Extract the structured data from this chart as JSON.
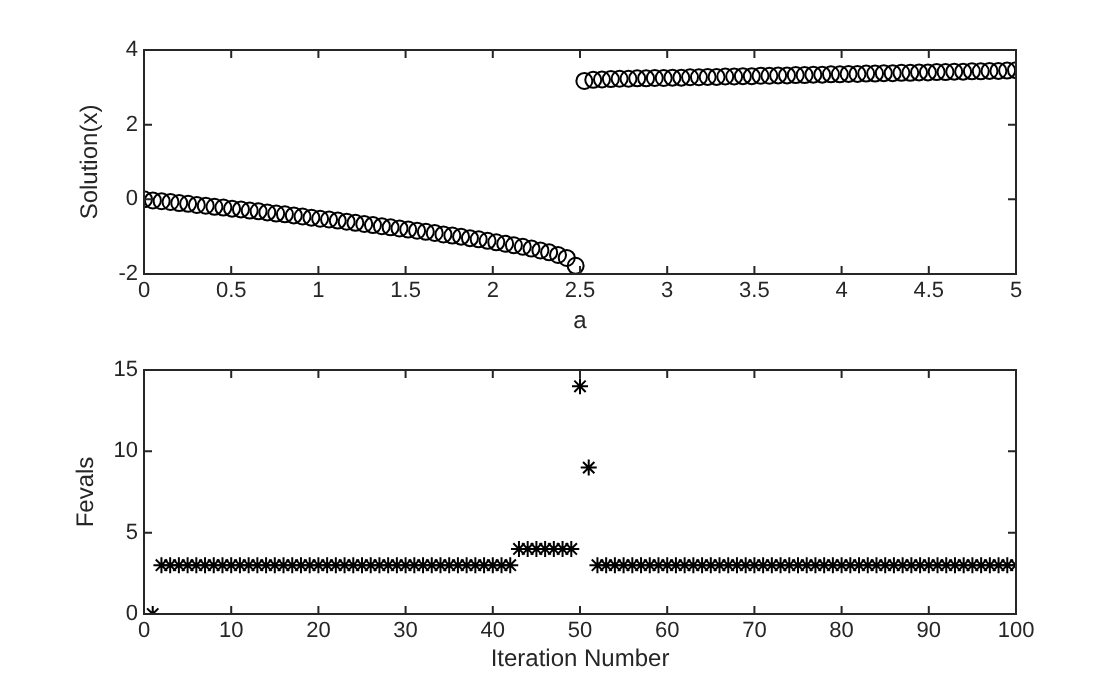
{
  "chart_data": [
    {
      "type": "scatter",
      "xlabel": "a",
      "ylabel": "Solution(x)",
      "color": "#000000",
      "marker": "circle",
      "grid": false,
      "legend": false,
      "xlim": [
        0,
        5
      ],
      "ylim": [
        -2,
        4
      ],
      "xticks": [
        0,
        0.5,
        1,
        1.5,
        2,
        2.5,
        3,
        3.5,
        4,
        4.5,
        5
      ],
      "yticks": [
        -2,
        0,
        2,
        4
      ],
      "x": [
        0,
        0.051,
        0.101,
        0.152,
        0.202,
        0.253,
        0.303,
        0.354,
        0.404,
        0.455,
        0.505,
        0.556,
        0.606,
        0.657,
        0.707,
        0.758,
        0.808,
        0.859,
        0.909,
        0.96,
        1.01,
        1.061,
        1.111,
        1.162,
        1.212,
        1.263,
        1.313,
        1.364,
        1.414,
        1.465,
        1.515,
        1.566,
        1.616,
        1.667,
        1.717,
        1.768,
        1.818,
        1.869,
        1.919,
        1.97,
        2.02,
        2.071,
        2.121,
        2.172,
        2.222,
        2.273,
        2.323,
        2.374,
        2.424,
        2.475,
        2.525,
        2.576,
        2.626,
        2.677,
        2.727,
        2.778,
        2.828,
        2.879,
        2.929,
        2.98,
        3.03,
        3.081,
        3.131,
        3.182,
        3.232,
        3.283,
        3.333,
        3.384,
        3.434,
        3.485,
        3.535,
        3.586,
        3.636,
        3.687,
        3.737,
        3.788,
        3.838,
        3.889,
        3.939,
        3.99,
        4.04,
        4.091,
        4.141,
        4.192,
        4.242,
        4.293,
        4.343,
        4.394,
        4.444,
        4.495,
        4.545,
        4.596,
        4.646,
        4.697,
        4.747,
        4.798,
        4.848,
        4.899,
        4.949,
        5
      ],
      "values": [
        0,
        -0.03,
        -0.05,
        -0.07,
        -0.1,
        -0.12,
        -0.15,
        -0.17,
        -0.2,
        -0.22,
        -0.25,
        -0.27,
        -0.3,
        -0.32,
        -0.35,
        -0.38,
        -0.4,
        -0.43,
        -0.46,
        -0.49,
        -0.52,
        -0.54,
        -0.57,
        -0.6,
        -0.63,
        -0.66,
        -0.69,
        -0.72,
        -0.75,
        -0.78,
        -0.81,
        -0.84,
        -0.87,
        -0.9,
        -0.94,
        -0.97,
        -1.0,
        -1.04,
        -1.07,
        -1.11,
        -1.15,
        -1.19,
        -1.23,
        -1.27,
        -1.32,
        -1.37,
        -1.42,
        -1.49,
        -1.57,
        -1.78,
        3.17,
        3.2,
        3.21,
        3.22,
        3.23,
        3.23,
        3.24,
        3.24,
        3.25,
        3.25,
        3.26,
        3.26,
        3.27,
        3.27,
        3.28,
        3.28,
        3.29,
        3.29,
        3.3,
        3.3,
        3.31,
        3.31,
        3.32,
        3.32,
        3.33,
        3.33,
        3.34,
        3.34,
        3.35,
        3.35,
        3.36,
        3.36,
        3.37,
        3.37,
        3.38,
        3.38,
        3.39,
        3.39,
        3.4,
        3.4,
        3.41,
        3.41,
        3.42,
        3.42,
        3.43,
        3.43,
        3.44,
        3.44,
        3.45,
        3.46
      ]
    },
    {
      "type": "scatter",
      "xlabel": "Iteration Number",
      "ylabel": "Fevals",
      "color": "#000000",
      "marker": "cross",
      "grid": false,
      "legend": false,
      "xlim": [
        0,
        100
      ],
      "ylim": [
        0,
        15
      ],
      "xticks": [
        0,
        10,
        20,
        30,
        40,
        50,
        60,
        70,
        80,
        90,
        100
      ],
      "yticks": [
        0,
        5,
        10,
        15
      ],
      "x": [
        1,
        2,
        3,
        4,
        5,
        6,
        7,
        8,
        9,
        10,
        11,
        12,
        13,
        14,
        15,
        16,
        17,
        18,
        19,
        20,
        21,
        22,
        23,
        24,
        25,
        26,
        27,
        28,
        29,
        30,
        31,
        32,
        33,
        34,
        35,
        36,
        37,
        38,
        39,
        40,
        41,
        42,
        43,
        44,
        45,
        46,
        47,
        48,
        49,
        50,
        51,
        52,
        53,
        54,
        55,
        56,
        57,
        58,
        59,
        60,
        61,
        62,
        63,
        64,
        65,
        66,
        67,
        68,
        69,
        70,
        71,
        72,
        73,
        74,
        75,
        76,
        77,
        78,
        79,
        80,
        81,
        82,
        83,
        84,
        85,
        86,
        87,
        88,
        89,
        90,
        91,
        92,
        93,
        94,
        95,
        96,
        97,
        98,
        99,
        100
      ],
      "values": [
        0,
        3,
        3,
        3,
        3,
        3,
        3,
        3,
        3,
        3,
        3,
        3,
        3,
        3,
        3,
        3,
        3,
        3,
        3,
        3,
        3,
        3,
        3,
        3,
        3,
        3,
        3,
        3,
        3,
        3,
        3,
        3,
        3,
        3,
        3,
        3,
        3,
        3,
        3,
        3,
        3,
        3,
        4,
        4,
        4,
        4,
        4,
        4,
        4,
        14,
        9,
        3,
        3,
        3,
        3,
        3,
        3,
        3,
        3,
        3,
        3,
        3,
        3,
        3,
        3,
        3,
        3,
        3,
        3,
        3,
        3,
        3,
        3,
        3,
        3,
        3,
        3,
        3,
        3,
        3,
        3,
        3,
        3,
        3,
        3,
        3,
        3,
        3,
        3,
        3,
        3,
        3,
        3,
        3,
        3,
        3,
        3,
        3,
        3,
        3
      ]
    }
  ]
}
